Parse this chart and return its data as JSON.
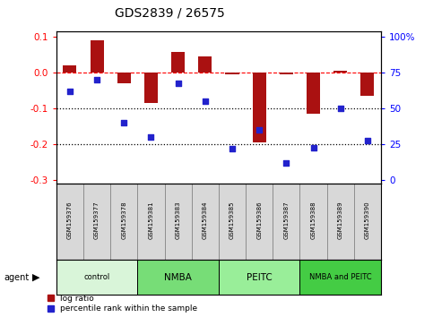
{
  "title": "GDS2839 / 26575",
  "samples": [
    "GSM159376",
    "GSM159377",
    "GSM159378",
    "GSM159381",
    "GSM159383",
    "GSM159384",
    "GSM159385",
    "GSM159386",
    "GSM159387",
    "GSM159388",
    "GSM159389",
    "GSM159390"
  ],
  "log_ratio": [
    0.022,
    0.092,
    -0.03,
    -0.085,
    0.058,
    0.047,
    -0.005,
    -0.195,
    -0.005,
    -0.115,
    0.005,
    -0.065
  ],
  "percentile_rank": [
    62,
    70,
    40,
    30,
    68,
    55,
    22,
    35,
    12,
    23,
    50,
    28
  ],
  "groups": [
    {
      "label": "control",
      "start": 0,
      "end": 3,
      "color": "#d9f5d9"
    },
    {
      "label": "NMBA",
      "start": 3,
      "end": 6,
      "color": "#77dd77"
    },
    {
      "label": "PEITC",
      "start": 6,
      "end": 9,
      "color": "#99ee99"
    },
    {
      "label": "NMBA and PEITC",
      "start": 9,
      "end": 12,
      "color": "#44cc44"
    }
  ],
  "bar_color": "#aa1111",
  "dot_color": "#2222cc",
  "ylim": [
    -0.31,
    0.115
  ],
  "yticks_left": [
    -0.3,
    -0.2,
    -0.1,
    0.0,
    0.1
  ],
  "yticks_right_labels": [
    "0",
    "25",
    "50",
    "75",
    "100%"
  ],
  "hline_y": 0.0,
  "dotted_lines": [
    -0.1,
    -0.2
  ],
  "bar_width": 0.5
}
